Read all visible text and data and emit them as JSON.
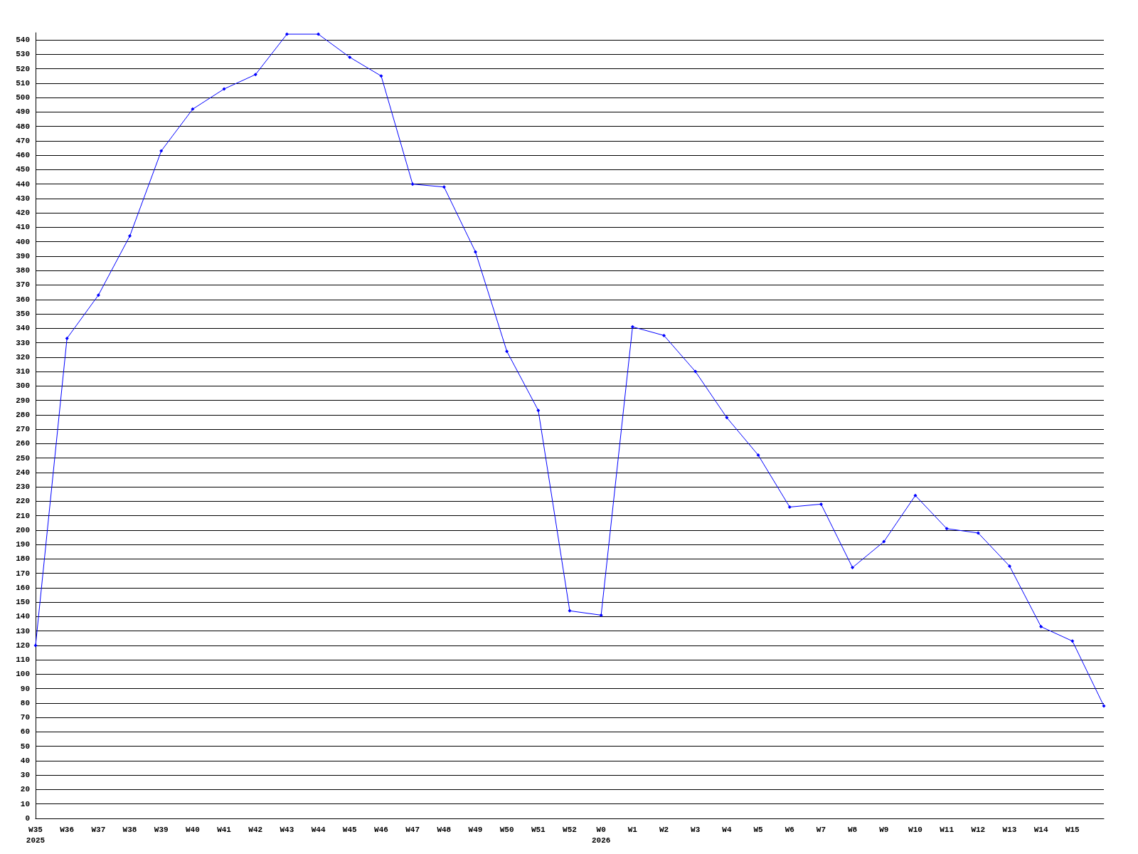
{
  "chart_data": {
    "type": "line",
    "categories": [
      "W35\n2025",
      "W36",
      "W37",
      "W38",
      "W39",
      "W40",
      "W41",
      "W42",
      "W43",
      "W44",
      "W45",
      "W46",
      "W47",
      "W48",
      "W49",
      "W50",
      "W51",
      "W52",
      "W0\n2026",
      "W1",
      "W2",
      "W3",
      "W4",
      "W5",
      "W6",
      "W7",
      "W8",
      "W9",
      "W10",
      "W11",
      "W12",
      "W13",
      "W14",
      "W15",
      null
    ],
    "series": [
      {
        "color": "#0000ff",
        "values": [
          120,
          333,
          363,
          404,
          463,
          492,
          506,
          516,
          544,
          544,
          528,
          515,
          440,
          438,
          393,
          324,
          283,
          144,
          141,
          341,
          335,
          310,
          278,
          252,
          216,
          218,
          174,
          192,
          224,
          201,
          198,
          175,
          133,
          123,
          78
        ]
      }
    ],
    "ylim": [
      0,
      545
    ],
    "yticks": [
      0,
      10,
      20,
      30,
      40,
      50,
      60,
      70,
      80,
      90,
      100,
      110,
      120,
      130,
      140,
      150,
      160,
      170,
      180,
      190,
      200,
      210,
      220,
      230,
      240,
      250,
      260,
      270,
      280,
      290,
      300,
      310,
      320,
      330,
      340,
      350,
      360,
      370,
      380,
      390,
      400,
      410,
      420,
      430,
      440,
      450,
      460,
      470,
      480,
      490,
      500,
      510,
      520,
      530,
      540
    ],
    "grid": "y",
    "marker": "diamond",
    "line_style": "solid"
  }
}
